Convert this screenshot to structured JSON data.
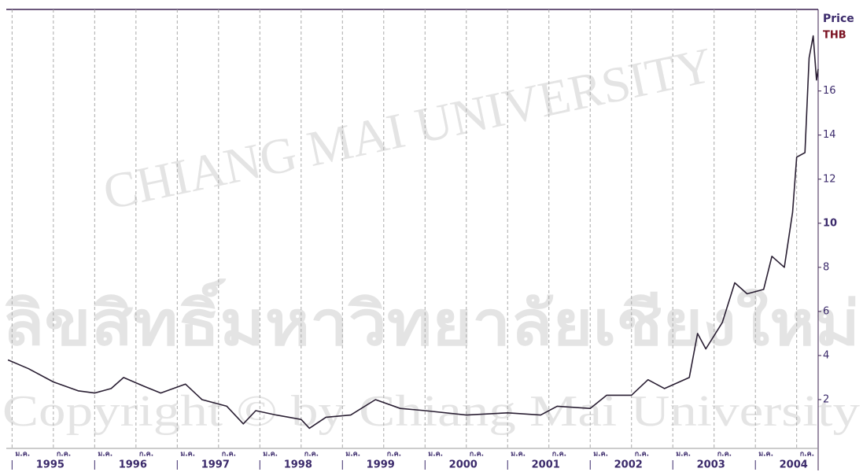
{
  "chart_data": {
    "type": "line",
    "axis_label_top": "Price",
    "axis_label_unit": "THB",
    "watermark": [
      "CHIANG MAI UNIVERSITY",
      "ลิขสิทธิ์มหาวิทยาลัยเชียงใหม่",
      "Copyright © by Chiang Mai University"
    ],
    "x": [
      1994.95,
      1995.2,
      1995.5,
      1995.8,
      1996.0,
      1996.2,
      1996.35,
      1996.6,
      1996.8,
      1997.1,
      1997.3,
      1997.6,
      1997.8,
      1997.95,
      1998.2,
      1998.5,
      1998.6,
      1998.8,
      1999.1,
      1999.4,
      1999.7,
      2000.0,
      2000.5,
      2001.0,
      2001.4,
      2001.6,
      2002.0,
      2002.2,
      2002.5,
      2002.7,
      2002.9,
      2003.2,
      2003.3,
      2003.4,
      2003.6,
      2003.75,
      2003.9,
      2004.1,
      2004.2,
      2004.35,
      2004.45,
      2004.5,
      2004.6,
      2004.65,
      2004.7,
      2004.74,
      2004.76
    ],
    "series": [
      {
        "color": "#2a1f33",
        "values": [
          3.8,
          3.4,
          2.8,
          2.4,
          2.3,
          2.5,
          3.0,
          2.6,
          2.3,
          2.7,
          2.0,
          1.7,
          0.9,
          1.5,
          1.3,
          1.1,
          0.7,
          1.2,
          1.3,
          2.0,
          1.6,
          1.5,
          1.3,
          1.4,
          1.3,
          1.7,
          1.6,
          2.2,
          2.2,
          2.9,
          2.5,
          3.0,
          5.0,
          4.3,
          5.5,
          7.3,
          6.8,
          7.0,
          8.5,
          8.0,
          10.5,
          13.0,
          13.2,
          17.5,
          18.5,
          16.5,
          17.0
        ]
      }
    ],
    "xlim": [
      1994.93,
      2004.76
    ],
    "ylim": [
      0,
      19.7
    ],
    "yticks": [
      2,
      4,
      6,
      8,
      10,
      12,
      14,
      16
    ],
    "year_ticks": [
      {
        "value": 1995.5,
        "label": "1995"
      },
      {
        "value": 1996.5,
        "label": "1996"
      },
      {
        "value": 1997.5,
        "label": "1997"
      },
      {
        "value": 1998.5,
        "label": "1998"
      },
      {
        "value": 1999.5,
        "label": "1999"
      },
      {
        "value": 2000.5,
        "label": "2000"
      },
      {
        "value": 2001.5,
        "label": "2001"
      },
      {
        "value": 2002.5,
        "label": "2002"
      },
      {
        "value": 2003.5,
        "label": "2003"
      },
      {
        "value": 2004.5,
        "label": "2004"
      }
    ],
    "month_ticks": [
      {
        "value": 1995.0,
        "label": "ม.ค."
      },
      {
        "value": 1995.5,
        "label": "ก.ค."
      },
      {
        "value": 1996.0,
        "label": "ม.ค."
      },
      {
        "value": 1996.5,
        "label": "ก.ค."
      },
      {
        "value": 1997.0,
        "label": "ม.ค."
      },
      {
        "value": 1997.5,
        "label": "ก.ค."
      },
      {
        "value": 1998.0,
        "label": "ม.ค."
      },
      {
        "value": 1998.5,
        "label": "ก.ค."
      },
      {
        "value": 1999.0,
        "label": "ม.ค."
      },
      {
        "value": 1999.5,
        "label": "ก.ค."
      },
      {
        "value": 2000.0,
        "label": "ม.ค."
      },
      {
        "value": 2000.5,
        "label": "ก.ค."
      },
      {
        "value": 2001.0,
        "label": "ม.ค."
      },
      {
        "value": 2001.5,
        "label": "ก.ค."
      },
      {
        "value": 2002.0,
        "label": "ม.ค."
      },
      {
        "value": 2002.5,
        "label": "ก.ค."
      },
      {
        "value": 2003.0,
        "label": "ม.ค."
      },
      {
        "value": 2003.5,
        "label": "ก.ค."
      },
      {
        "value": 2004.0,
        "label": "ม.ค."
      },
      {
        "value": 2004.5,
        "label": "ก.ค."
      }
    ],
    "grid": true
  }
}
